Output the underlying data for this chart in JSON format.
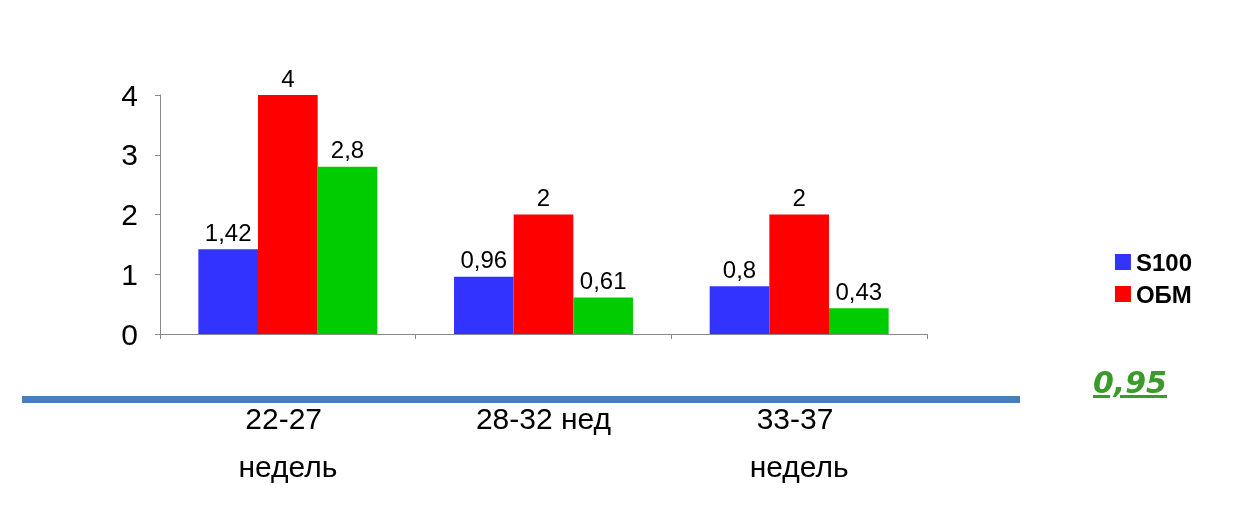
{
  "chart_data": {
    "type": "bar",
    "categories": [
      "22-27 недель",
      "28-32 нед",
      "33-37 недель"
    ],
    "series": [
      {
        "name": "S100",
        "color": "#3333ff",
        "values": [
          1.42,
          0.96,
          0.8
        ],
        "value_labels": [
          "1,42",
          "0,96",
          "0,8"
        ]
      },
      {
        "name": "ОБМ",
        "color": "#ff0000",
        "values": [
          4,
          2,
          2
        ],
        "value_labels": [
          "4",
          "2",
          "2"
        ]
      },
      {
        "color": "#00cc00",
        "values": [
          2.8,
          0.61,
          0.43
        ],
        "value_labels": [
          "2,8",
          "0,61",
          "0,43"
        ]
      }
    ],
    "ylim": [
      0,
      4
    ],
    "yticks": [
      0,
      1,
      2,
      3,
      4
    ],
    "grid": false,
    "legend": "right",
    "annotations": [
      "0,95"
    ]
  }
}
